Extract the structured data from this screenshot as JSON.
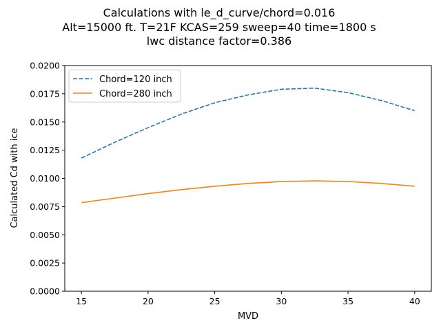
{
  "chart_data": {
    "type": "line",
    "title_lines": [
      "Calculations with le_d_curve/chord=0.016",
      "Alt=15000 ft. T=21F KCAS=259 sweep=40 time=1800 s",
      "lwc distance factor=0.386"
    ],
    "xlabel": "MVD",
    "ylabel": "Calculated Cd with ice",
    "xlim": [
      13.75,
      41.25
    ],
    "ylim": [
      0,
      0.02
    ],
    "x_ticks": [
      "15",
      "20",
      "25",
      "30",
      "35",
      "40"
    ],
    "y_ticks": [
      "0.0000",
      "0.0025",
      "0.0050",
      "0.0075",
      "0.0100",
      "0.0125",
      "0.0150",
      "0.0175",
      "0.0200"
    ],
    "x": [
      15,
      17.5,
      20,
      22.5,
      25,
      27.5,
      30,
      32.5,
      35,
      37.5,
      40
    ],
    "series": [
      {
        "name": "Chord=120 inch",
        "color": "#1f77b4",
        "style": "dashed",
        "values": [
          0.0118,
          0.0132,
          0.0145,
          0.0157,
          0.0167,
          0.0174,
          0.0179,
          0.018,
          0.0176,
          0.0169,
          0.016
        ]
      },
      {
        "name": "Chord=280 inch",
        "color": "#ff7f0e",
        "style": "solid",
        "values": [
          0.00785,
          0.00825,
          0.00865,
          0.009,
          0.0093,
          0.00955,
          0.00972,
          0.00978,
          0.00972,
          0.00955,
          0.0093
        ]
      }
    ],
    "legend_position": "upper-left",
    "grid": false
  }
}
